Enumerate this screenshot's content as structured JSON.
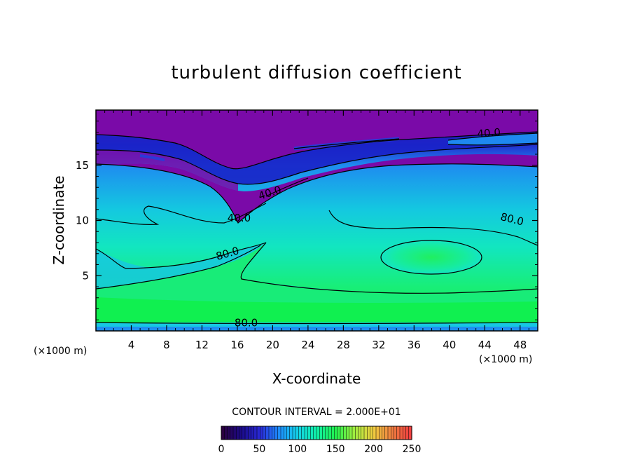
{
  "chart_data": {
    "type": "heatmap",
    "title": "turbulent diffusion coefficient",
    "xlabel": "X-coordinate",
    "ylabel": "Z-coordinate",
    "x_unit_left": "(×1000 m)",
    "x_unit_right": "(×1000 m)",
    "xlim": [
      0,
      50
    ],
    "ylim": [
      0,
      20
    ],
    "x_ticks": [
      4,
      8,
      12,
      16,
      20,
      24,
      28,
      32,
      36,
      40,
      44,
      48
    ],
    "y_ticks": [
      5,
      10,
      15
    ],
    "contour_interval_text": "CONTOUR INTERVAL = 2.000E+01",
    "contour_labels": [
      {
        "text": "40.0",
        "x": 44.5,
        "z": 17.6
      },
      {
        "text": "40.0",
        "x": 19.8,
        "z": 12.2
      },
      {
        "text": "40.0",
        "x": 16.2,
        "z": 9.9
      },
      {
        "text": "80.0",
        "x": 47.0,
        "z": 9.8
      },
      {
        "text": "80.0",
        "x": 15.0,
        "z": 6.7
      },
      {
        "text": "80.0",
        "x": 17.0,
        "z": 0.4
      }
    ],
    "colorbar": {
      "min": 0,
      "max": 250,
      "tick_labels": [
        "0",
        "50",
        "100",
        "150",
        "200",
        "250"
      ],
      "colors": [
        "#2b0040",
        "#1a0a8a",
        "#2a2ad8",
        "#1d8cff",
        "#14d2e8",
        "#10f0a8",
        "#20f050",
        "#a0f040",
        "#f0d040",
        "#f08040",
        "#f04040"
      ]
    },
    "field_colors": {
      "purple": "#7a0aa8",
      "deep_blue": "#1a22c8",
      "blue": "#1e88f0",
      "cyan": "#12c8e0",
      "aqua_green": "#14e6b8",
      "green": "#1aec6e",
      "bright_green": "#10f050"
    },
    "grid": false
  }
}
